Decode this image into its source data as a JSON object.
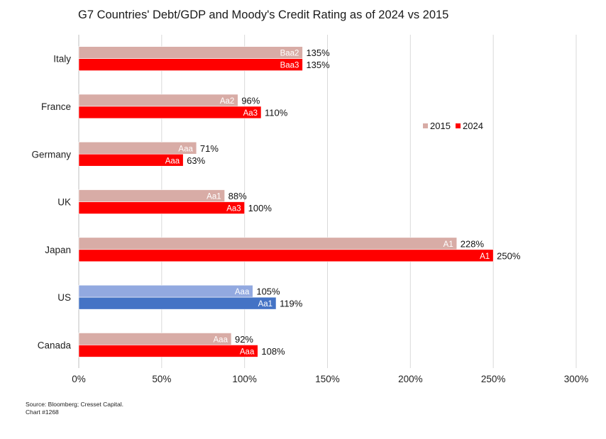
{
  "chart_data": {
    "type": "bar",
    "orientation": "horizontal",
    "title": "G7 Countries' Debt/GDP and Moody's Credit Rating as of 2024 vs 2015",
    "categories": [
      "Italy",
      "France",
      "Germany",
      "UK",
      "Japan",
      "US",
      "Canada"
    ],
    "series": [
      {
        "name": "2015",
        "values": [
          135,
          96,
          71,
          88,
          228,
          105,
          92
        ],
        "value_labels": [
          "135%",
          "96%",
          "71%",
          "88%",
          "228%",
          "105%",
          "92%"
        ],
        "bar_labels": [
          "Baa2",
          "Aa2",
          "Aaa",
          "Aa1",
          "A1",
          "Aaa",
          "Aaa"
        ],
        "color": "#d8aca6",
        "highlight_colors": {
          "US": "#92a9e0"
        }
      },
      {
        "name": "2024",
        "values": [
          135,
          110,
          63,
          100,
          250,
          119,
          108
        ],
        "value_labels": [
          "135%",
          "110%",
          "63%",
          "100%",
          "250%",
          "119%",
          "108%"
        ],
        "bar_labels": [
          "Baa3",
          "Aa3",
          "Aaa",
          "Aa3",
          "A1",
          "Aa1",
          "Aaa"
        ],
        "color": "#ff0000",
        "highlight_colors": {
          "US": "#4473c5"
        }
      }
    ],
    "xlim": [
      0,
      300
    ],
    "xticks": [
      0,
      50,
      100,
      150,
      200,
      250,
      300
    ],
    "xtick_labels": [
      "0%",
      "50%",
      "100%",
      "150%",
      "200%",
      "250%",
      "300%"
    ],
    "grid": "vertical",
    "legend_position": "right",
    "xlabel": "",
    "ylabel": ""
  },
  "footer": {
    "source": "Source: Bloomberg; Cresset Capital.",
    "chart_number": "Chart #1268"
  }
}
